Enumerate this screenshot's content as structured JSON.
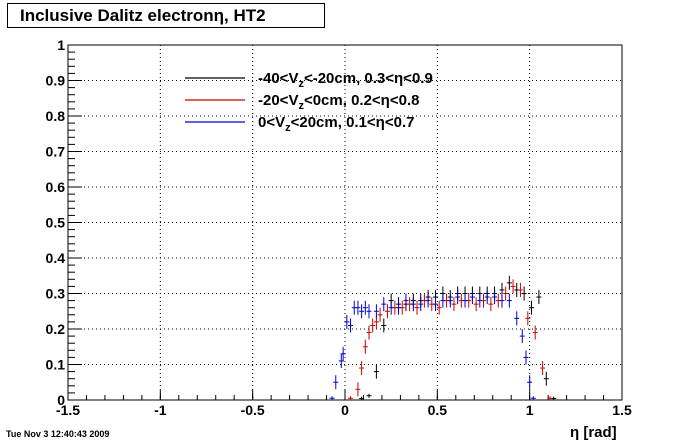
{
  "title": "Inclusive Dalitz electronη, HT2",
  "timestamp": "Tue Nov  3 12:40:43 2009",
  "chart_data": {
    "type": "scatter",
    "title": "Inclusive Dalitz electronη, HT2",
    "xlabel": "η [rad]",
    "ylabel": "",
    "xlim": [
      -1.5,
      1.5
    ],
    "ylim": [
      0,
      1
    ],
    "x_ticks": [
      "-1.5",
      "-1",
      "-0.5",
      "0",
      "0.5",
      "1",
      "1.5"
    ],
    "y_ticks": [
      "0",
      "0.1",
      "0.2",
      "0.3",
      "0.4",
      "0.5",
      "0.6",
      "0.7",
      "0.8",
      "0.9",
      "1"
    ],
    "grid": true,
    "legend_position": "top-center",
    "series": [
      {
        "name": "-40<V_z<-20cm, 0.3<η<0.9",
        "color": "#000000",
        "points": [
          [
            0.09,
            0.004
          ],
          [
            0.13,
            0.012
          ],
          [
            0.17,
            0.08
          ],
          [
            0.21,
            0.21
          ],
          [
            0.25,
            0.28
          ],
          [
            0.29,
            0.27
          ],
          [
            0.33,
            0.27
          ],
          [
            0.37,
            0.28
          ],
          [
            0.41,
            0.28
          ],
          [
            0.45,
            0.29
          ],
          [
            0.49,
            0.29
          ],
          [
            0.53,
            0.3
          ],
          [
            0.57,
            0.29
          ],
          [
            0.61,
            0.3
          ],
          [
            0.65,
            0.3
          ],
          [
            0.69,
            0.3
          ],
          [
            0.73,
            0.3
          ],
          [
            0.77,
            0.3
          ],
          [
            0.81,
            0.3
          ],
          [
            0.85,
            0.31
          ],
          [
            0.89,
            0.33
          ],
          [
            0.93,
            0.31
          ],
          [
            0.97,
            0.3
          ],
          [
            1.01,
            0.26
          ],
          [
            1.05,
            0.29
          ],
          [
            1.09,
            0.06
          ],
          [
            1.13,
            0.004
          ]
        ]
      },
      {
        "name": "-20<V_z<0cm, 0.2<η<0.8",
        "color": "#cc0000",
        "points": [
          [
            0.03,
            0.005
          ],
          [
            0.07,
            0.03
          ],
          [
            0.09,
            0.09
          ],
          [
            0.11,
            0.15
          ],
          [
            0.13,
            0.19
          ],
          [
            0.15,
            0.21
          ],
          [
            0.17,
            0.22
          ],
          [
            0.19,
            0.24
          ],
          [
            0.23,
            0.25
          ],
          [
            0.27,
            0.26
          ],
          [
            0.31,
            0.26
          ],
          [
            0.35,
            0.27
          ],
          [
            0.39,
            0.26
          ],
          [
            0.43,
            0.28
          ],
          [
            0.47,
            0.27
          ],
          [
            0.51,
            0.26
          ],
          [
            0.55,
            0.28
          ],
          [
            0.59,
            0.27
          ],
          [
            0.63,
            0.28
          ],
          [
            0.67,
            0.28
          ],
          [
            0.71,
            0.27
          ],
          [
            0.75,
            0.28
          ],
          [
            0.79,
            0.27
          ],
          [
            0.83,
            0.28
          ],
          [
            0.87,
            0.3
          ],
          [
            0.91,
            0.32
          ],
          [
            0.95,
            0.31
          ],
          [
            0.99,
            0.23
          ],
          [
            1.03,
            0.19
          ],
          [
            1.07,
            0.09
          ],
          [
            1.11,
            0.005
          ]
        ]
      },
      {
        "name": "0<V_z<20cm, 0.1<η<0.7",
        "color": "#0000cc",
        "points": [
          [
            -0.07,
            0.005
          ],
          [
            -0.05,
            0.05
          ],
          [
            -0.02,
            0.11
          ],
          [
            -0.01,
            0.13
          ],
          [
            0.01,
            0.22
          ],
          [
            0.03,
            0.21
          ],
          [
            0.05,
            0.26
          ],
          [
            0.07,
            0.26
          ],
          [
            0.09,
            0.25
          ],
          [
            0.11,
            0.26
          ],
          [
            0.13,
            0.25
          ],
          [
            0.17,
            0.25
          ],
          [
            0.21,
            0.27
          ],
          [
            0.25,
            0.26
          ],
          [
            0.29,
            0.26
          ],
          [
            0.33,
            0.28
          ],
          [
            0.37,
            0.27
          ],
          [
            0.41,
            0.27
          ],
          [
            0.45,
            0.28
          ],
          [
            0.49,
            0.27
          ],
          [
            0.53,
            0.28
          ],
          [
            0.57,
            0.28
          ],
          [
            0.61,
            0.29
          ],
          [
            0.65,
            0.28
          ],
          [
            0.69,
            0.29
          ],
          [
            0.73,
            0.28
          ],
          [
            0.77,
            0.29
          ],
          [
            0.81,
            0.29
          ],
          [
            0.85,
            0.28
          ],
          [
            0.89,
            0.28
          ],
          [
            0.93,
            0.23
          ],
          [
            0.96,
            0.18
          ],
          [
            0.98,
            0.12
          ],
          [
            1.0,
            0.05
          ],
          [
            1.02,
            0.005
          ]
        ]
      }
    ]
  }
}
